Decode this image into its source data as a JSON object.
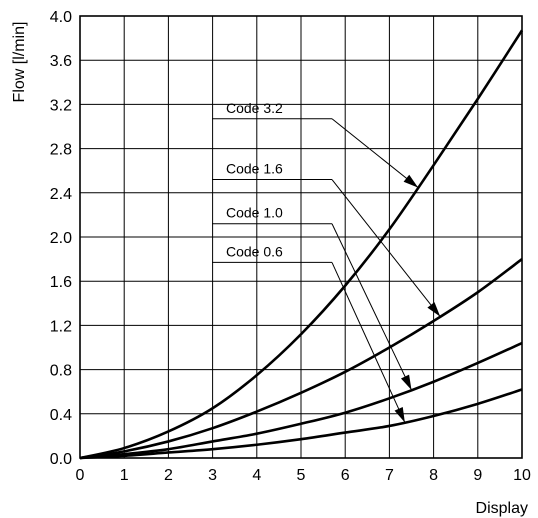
{
  "chart_data": {
    "type": "line",
    "xlabel": "Display",
    "ylabel": "Flow [l/min]",
    "xlim": [
      0,
      10
    ],
    "ylim": [
      0,
      4.0
    ],
    "x_ticks": [
      0,
      1,
      2,
      3,
      4,
      5,
      6,
      7,
      8,
      9,
      10
    ],
    "y_ticks": [
      "0.0",
      "0.4",
      "0.8",
      "1.2",
      "1.6",
      "2.0",
      "2.4",
      "2.8",
      "3.2",
      "3.6",
      "4.0"
    ],
    "grid": true,
    "x": [
      0,
      1,
      2,
      3,
      4,
      5,
      6,
      7,
      8,
      9,
      10
    ],
    "series": [
      {
        "name": "Code 3.2",
        "values": [
          0,
          0.09,
          0.24,
          0.45,
          0.75,
          1.12,
          1.56,
          2.07,
          2.65,
          3.25,
          3.87
        ]
      },
      {
        "name": "Code 1.6",
        "values": [
          0,
          0.06,
          0.15,
          0.27,
          0.42,
          0.59,
          0.78,
          1.0,
          1.24,
          1.5,
          1.8
        ]
      },
      {
        "name": "Code 1.0",
        "values": [
          0,
          0.035,
          0.08,
          0.15,
          0.22,
          0.31,
          0.41,
          0.54,
          0.69,
          0.86,
          1.04
        ]
      },
      {
        "name": "Code 0.6",
        "values": [
          0,
          0.02,
          0.05,
          0.08,
          0.12,
          0.17,
          0.23,
          0.29,
          0.38,
          0.49,
          0.62
        ]
      }
    ],
    "annotations": [
      {
        "text": "Code 3.2",
        "series": 0,
        "label_y": 3.07,
        "arrow_to_x": 7.65
      },
      {
        "text": "Code 1.6",
        "series": 1,
        "label_y": 2.52,
        "arrow_to_x": 8.15
      },
      {
        "text": "Code 1.0",
        "series": 2,
        "label_y": 2.12,
        "arrow_to_x": 7.5
      },
      {
        "text": "Code 0.6",
        "series": 3,
        "label_y": 1.77,
        "arrow_to_x": 7.35
      }
    ]
  }
}
